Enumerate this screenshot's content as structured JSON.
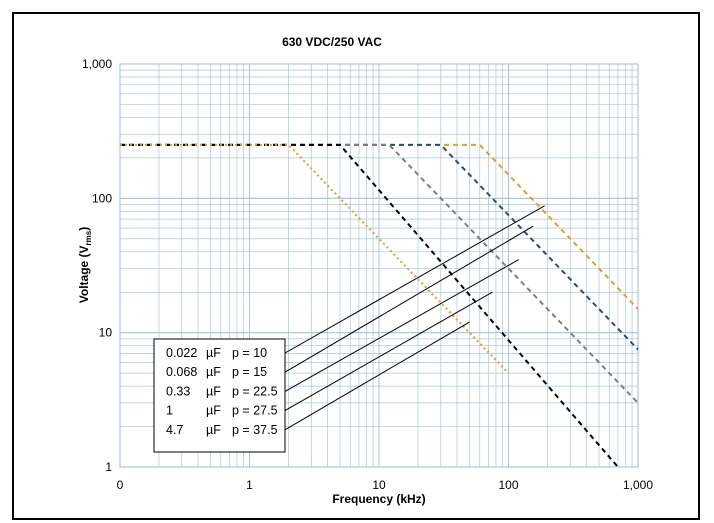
{
  "chart_data": {
    "type": "line",
    "title": "630 VDC/250 VAC",
    "xlabel": "Frequency (kHz)",
    "ylabel": {
      "main": "Voltage (V",
      "sub": "rms",
      "close": ")"
    },
    "x_scale": "log",
    "y_scale": "log",
    "xlim": [
      0.1,
      1000
    ],
    "ylim": [
      1,
      1000
    ],
    "x_ticks": [
      {
        "value": 0.1,
        "label": "0"
      },
      {
        "value": 1,
        "label": "1"
      },
      {
        "value": 10,
        "label": "10"
      },
      {
        "value": 100,
        "label": "100"
      },
      {
        "value": 1000,
        "label": "1,000"
      }
    ],
    "y_ticks": [
      {
        "value": 1,
        "label": "1"
      },
      {
        "value": 10,
        "label": "10"
      },
      {
        "value": 100,
        "label": "100"
      },
      {
        "value": 1000,
        "label": "1,000"
      }
    ],
    "grid": true,
    "series": [
      {
        "name": "0.022 µF  p = 10",
        "color": "#e0a12a",
        "dash": "dashed",
        "x": [
          0.1,
          60,
          1000
        ],
        "y": [
          250,
          250,
          15
        ]
      },
      {
        "name": "0.068 µF  p = 15",
        "color": "#2e4a7d",
        "dash": "dashed",
        "x": [
          0.1,
          30,
          1000
        ],
        "y": [
          250,
          250,
          7.5
        ]
      },
      {
        "name": "0.33 µF  p = 22.5",
        "color": "#7f7f7f",
        "dash": "dashed",
        "x": [
          0.1,
          12,
          1000
        ],
        "y": [
          250,
          250,
          3
        ]
      },
      {
        "name": "1 µF  p = 27.5",
        "color": "#000000",
        "dash": "dashed",
        "x": [
          0.1,
          5,
          700
        ],
        "y": [
          250,
          250,
          1
        ]
      },
      {
        "name": "4.7 µF  p = 37.5",
        "color": "#e0a12a",
        "dash": "dotted",
        "x": [
          0.1,
          2,
          100
        ],
        "y": [
          250,
          250,
          5
        ]
      }
    ],
    "legend": {
      "position": "bottom-left",
      "rows": [
        {
          "cap": "0.022",
          "unit": "µF",
          "pitch": "p = 10",
          "target": {
            "x": 190,
            "y": 88
          }
        },
        {
          "cap": "0.068",
          "unit": "µF",
          "pitch": "p = 15",
          "target": {
            "x": 155,
            "y": 62
          }
        },
        {
          "cap": "0.33",
          "unit": "µF",
          "pitch": "p = 22.5",
          "target": {
            "x": 120,
            "y": 35
          }
        },
        {
          "cap": "1",
          "unit": "µF",
          "pitch": "p = 27.5",
          "target": {
            "x": 75,
            "y": 20
          }
        },
        {
          "cap": "4.7",
          "unit": "µF",
          "pitch": "p = 37.5",
          "target": {
            "x": 50,
            "y": 12
          }
        }
      ]
    }
  }
}
